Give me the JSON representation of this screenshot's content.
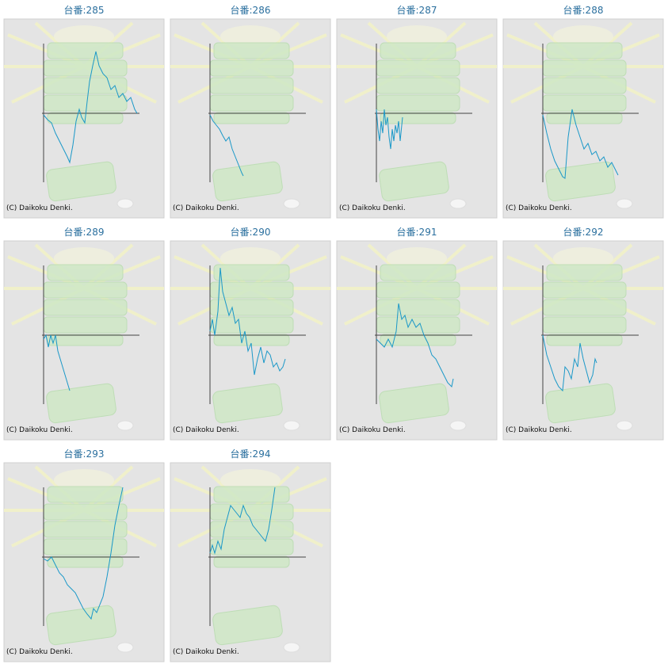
{
  "chart_data": [
    {
      "type": "line",
      "title": "台番:285",
      "credit": "(C) Daikoku Denki.",
      "xlim": [
        0,
        120
      ],
      "ylim": [
        -87,
        88
      ],
      "x": [
        0,
        5,
        10,
        15,
        20,
        25,
        30,
        33,
        37,
        41,
        45,
        48,
        52,
        55,
        58,
        62,
        66,
        70,
        75,
        80,
        85,
        90,
        95,
        100,
        105,
        110,
        115,
        118
      ],
      "series": [
        {
          "color": "#1a98c8",
          "values": [
            -2,
            -8,
            -12,
            -25,
            -35,
            -45,
            -55,
            -62,
            -40,
            -10,
            5,
            -5,
            -12,
            15,
            40,
            60,
            78,
            60,
            50,
            45,
            30,
            35,
            20,
            25,
            15,
            20,
            5,
            0
          ]
        }
      ]
    },
    {
      "type": "line",
      "title": "台番:286",
      "credit": "(C) Daikoku Denki.",
      "xlim": [
        0,
        120
      ],
      "ylim": [
        -87,
        88
      ],
      "x": [
        0,
        4,
        8,
        12,
        16,
        20,
        24,
        28,
        32,
        36,
        40,
        42
      ],
      "series": [
        {
          "color": "#1a98c8",
          "values": [
            -2,
            -10,
            -15,
            -20,
            -28,
            -35,
            -30,
            -45,
            -55,
            -65,
            -75,
            -79
          ]
        }
      ]
    },
    {
      "type": "line",
      "title": "台番:287",
      "credit": "(C) Daikoku Denki.",
      "xlim": [
        0,
        120
      ],
      "ylim": [
        -87,
        88
      ],
      "x": [
        0,
        2,
        4,
        6,
        8,
        10,
        12,
        14,
        16,
        18,
        20,
        22,
        24,
        26,
        28,
        30,
        33
      ],
      "series": [
        {
          "color": "#1a98c8",
          "values": [
            5,
            -20,
            -35,
            -10,
            -25,
            5,
            -15,
            -5,
            -30,
            -45,
            -20,
            -35,
            -15,
            -25,
            -10,
            -35,
            -5
          ]
        }
      ]
    },
    {
      "type": "line",
      "title": "台番:288",
      "credit": "(C) Daikoku Denki.",
      "xlim": [
        0,
        120
      ],
      "ylim": [
        -87,
        88
      ],
      "x": [
        0,
        5,
        10,
        15,
        20,
        25,
        28,
        32,
        37,
        42,
        47,
        52,
        57,
        62,
        67,
        72,
        77,
        82,
        87,
        92,
        95
      ],
      "series": [
        {
          "color": "#1a98c8",
          "values": [
            -2,
            -25,
            -45,
            -60,
            -70,
            -80,
            -82,
            -30,
            5,
            -15,
            -30,
            -45,
            -38,
            -52,
            -48,
            -60,
            -55,
            -68,
            -62,
            -72,
            -78
          ]
        }
      ]
    },
    {
      "type": "line",
      "title": "台番:289",
      "credit": "(C) Daikoku Denki.",
      "xlim": [
        0,
        120
      ],
      "ylim": [
        -87,
        88
      ],
      "x": [
        0,
        3,
        6,
        9,
        12,
        15,
        18,
        21,
        24,
        27,
        30,
        33
      ],
      "series": [
        {
          "color": "#1a98c8",
          "values": [
            -5,
            0,
            -15,
            0,
            -10,
            0,
            -20,
            -30,
            -40,
            -50,
            -60,
            -70
          ]
        }
      ]
    },
    {
      "type": "line",
      "title": "台番:290",
      "credit": "(C) Daikoku Denki.",
      "xlim": [
        0,
        120
      ],
      "ylim": [
        -87,
        88
      ],
      "x": [
        0,
        3,
        6,
        10,
        13,
        16,
        20,
        24,
        28,
        32,
        36,
        40,
        44,
        48,
        52,
        56,
        60,
        64,
        68,
        72,
        76,
        80,
        84,
        88,
        92,
        95
      ],
      "series": [
        {
          "color": "#1a98c8",
          "values": [
            5,
            20,
            0,
            30,
            85,
            55,
            40,
            25,
            35,
            15,
            20,
            -10,
            5,
            -20,
            -10,
            -50,
            -30,
            -15,
            -35,
            -20,
            -25,
            -40,
            -35,
            -45,
            -40,
            -30
          ]
        }
      ]
    },
    {
      "type": "line",
      "title": "台番:291",
      "credit": "(C) Daikoku Denki.",
      "xlim": [
        0,
        120
      ],
      "ylim": [
        -87,
        88
      ],
      "x": [
        0,
        5,
        10,
        15,
        20,
        25,
        28,
        32,
        36,
        40,
        45,
        50,
        55,
        60,
        65,
        70,
        75,
        80,
        85,
        90,
        95,
        97
      ],
      "series": [
        {
          "color": "#1a98c8",
          "values": [
            -5,
            -10,
            -15,
            -5,
            -15,
            5,
            40,
            20,
            25,
            10,
            20,
            10,
            15,
            0,
            -10,
            -25,
            -30,
            -40,
            -50,
            -60,
            -65,
            -55
          ]
        }
      ]
    },
    {
      "type": "line",
      "title": "台番:292",
      "credit": "(C) Daikoku Denki.",
      "xlim": [
        0,
        120
      ],
      "ylim": [
        -87,
        88
      ],
      "x": [
        0,
        5,
        10,
        15,
        20,
        25,
        28,
        32,
        36,
        40,
        44,
        47,
        51,
        55,
        59,
        63,
        66,
        68
      ],
      "series": [
        {
          "color": "#1a98c8",
          "values": [
            0,
            -25,
            -40,
            -55,
            -65,
            -70,
            -40,
            -45,
            -55,
            -30,
            -40,
            -10,
            -30,
            -45,
            -60,
            -50,
            -30,
            -35
          ]
        }
      ]
    },
    {
      "type": "line",
      "title": "台番:293",
      "credit": "(C) Daikoku Denki.",
      "xlim": [
        0,
        120
      ],
      "ylim": [
        -87,
        88
      ],
      "x": [
        0,
        5,
        10,
        15,
        20,
        25,
        30,
        35,
        40,
        45,
        50,
        55,
        60,
        63,
        67,
        71,
        75,
        80,
        85,
        90,
        95,
        100
      ],
      "series": [
        {
          "color": "#1a98c8",
          "values": [
            -2,
            -5,
            0,
            -10,
            -20,
            -25,
            -35,
            -40,
            -45,
            -55,
            -65,
            -72,
            -78,
            -65,
            -70,
            -60,
            -50,
            -25,
            5,
            40,
            65,
            88
          ]
        }
      ]
    },
    {
      "type": "line",
      "title": "台番:294",
      "credit": "(C) Daikoku Denki.",
      "xlim": [
        0,
        120
      ],
      "ylim": [
        -87,
        88
      ],
      "x": [
        0,
        3,
        6,
        10,
        14,
        18,
        22,
        26,
        30,
        34,
        38,
        42,
        46,
        50,
        54,
        58,
        62,
        66,
        70,
        74,
        78,
        82
      ],
      "series": [
        {
          "color": "#1a98c8",
          "values": [
            5,
            15,
            5,
            20,
            10,
            35,
            50,
            65,
            60,
            55,
            50,
            65,
            55,
            50,
            40,
            35,
            30,
            25,
            20,
            35,
            60,
            88
          ]
        }
      ]
    }
  ]
}
